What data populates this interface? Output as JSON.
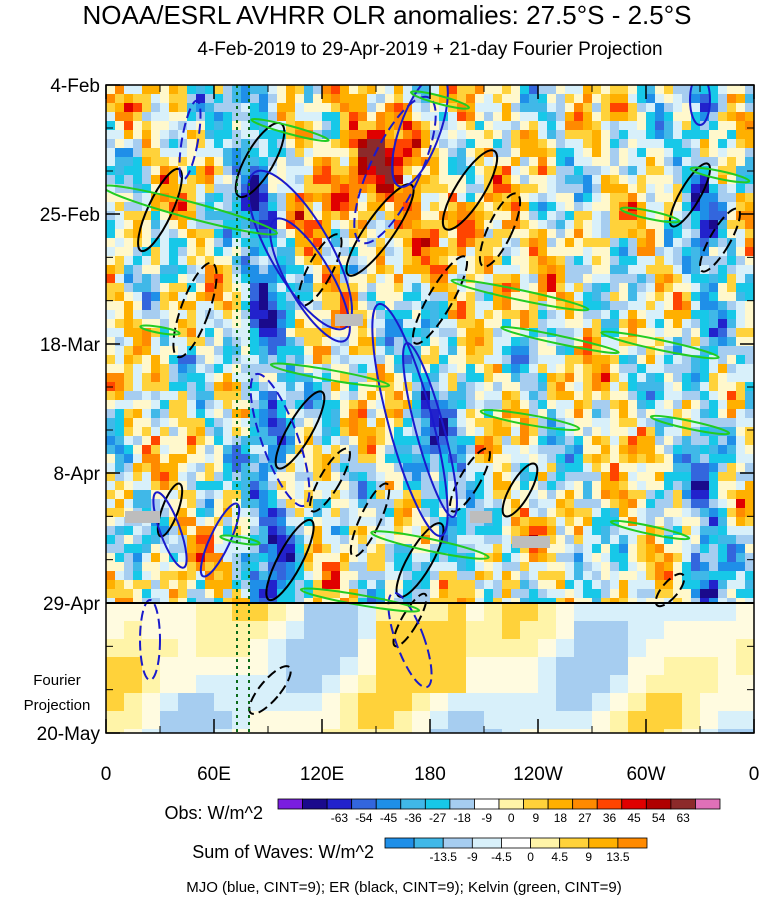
{
  "header": {
    "title": "NOAA/ESRL AVHRR OLR anomalies: 27.5°S - 2.5°S",
    "subtitle": "4-Feb-2019 to 29-Apr-2019 + 21-day Fourier Projection"
  },
  "chart_data": {
    "type": "heatmap",
    "title": "NOAA/ESRL AVHRR OLR anomalies: 27.5°S - 2.5°S",
    "subtitle": "4-Feb-2019 to 29-Apr-2019 + 21-day Fourier Projection",
    "x_axis": {
      "ticks": [
        "0",
        "60E",
        "120E",
        "180",
        "120W",
        "60W",
        "0"
      ],
      "longitude_range": [
        0,
        360
      ]
    },
    "y_axis": {
      "ticks": [
        "4-Feb",
        "25-Feb",
        "18-Mar",
        "8-Apr",
        "29-Apr",
        "20-May"
      ],
      "observation_end": "29-Apr",
      "projection_label": [
        "Fourier",
        "Projection"
      ]
    },
    "obs_colorbar": {
      "label": "Obs: W/m^2",
      "ticks": [
        "-63",
        "-54",
        "-45",
        "-36",
        "-27",
        "-18",
        "-9",
        "0",
        "9",
        "18",
        "27",
        "36",
        "45",
        "54",
        "63"
      ],
      "colors": [
        "#7a1ee0",
        "#1a0a8c",
        "#2222cc",
        "#3366dd",
        "#1f8fe8",
        "#40b8e8",
        "#17c8e8",
        "#a6cdf0",
        "#ffffff",
        "#fff4a8",
        "#ffd23a",
        "#ffb000",
        "#ff8a00",
        "#ff4400",
        "#e00000",
        "#b00000",
        "#8c2a2a",
        "#e070b8"
      ]
    },
    "waves_colorbar": {
      "label": "Sum of Waves: W/m^2",
      "ticks": [
        "-13.5",
        "-9",
        "-4.5",
        "0",
        "4.5",
        "9",
        "13.5"
      ],
      "colors": [
        "#1f8fe8",
        "#40b8e8",
        "#a6cdf0",
        "#d8f0fa",
        "#ffffff",
        "#fff4a8",
        "#ffd23a",
        "#ffb000",
        "#ff8a00"
      ]
    },
    "waves_caption": "MJO (blue, CINT=9); ER (black, CINT=9); Kelvin (green, CINT=9)",
    "series_colors": {
      "mjo": "#1a1acc",
      "er": "#000000",
      "kelvin": "#22cc22"
    }
  }
}
